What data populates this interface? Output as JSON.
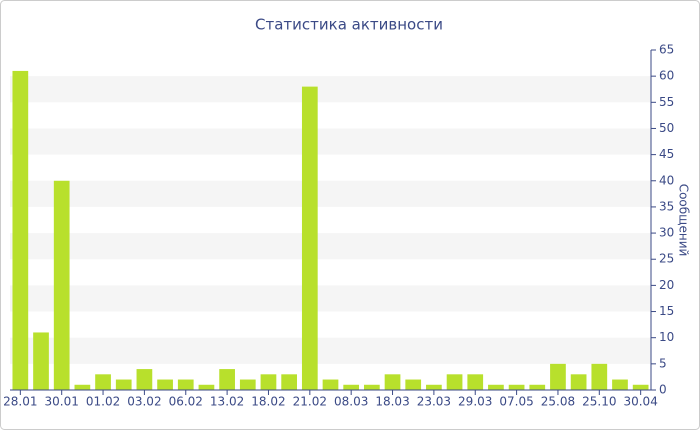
{
  "chart_data": {
    "type": "bar",
    "title": "Статистика активности",
    "y_axis_label": "Сообщений",
    "categories": [
      "28.01",
      null,
      "30.01",
      null,
      "01.02",
      null,
      "03.02",
      null,
      "06.02",
      null,
      "13.02",
      null,
      "18.02",
      null,
      "21.02",
      null,
      "08.03",
      null,
      "18.03",
      null,
      "23.03",
      null,
      "29.03",
      null,
      "07.05",
      null,
      "25.08",
      null,
      "25.10",
      null,
      "30.04"
    ],
    "values": [
      61,
      11,
      40,
      1,
      3,
      2,
      4,
      2,
      2,
      1,
      4,
      2,
      3,
      3,
      58,
      2,
      1,
      1,
      3,
      2,
      1,
      3,
      3,
      1,
      1,
      1,
      5,
      3,
      5,
      2,
      1
    ],
    "color": "#b8e02c",
    "ylim": [
      0,
      65
    ],
    "yticks": [
      0,
      5,
      10,
      15,
      20,
      25,
      30,
      35,
      40,
      45,
      50,
      55,
      60,
      65
    ],
    "grid": true
  }
}
